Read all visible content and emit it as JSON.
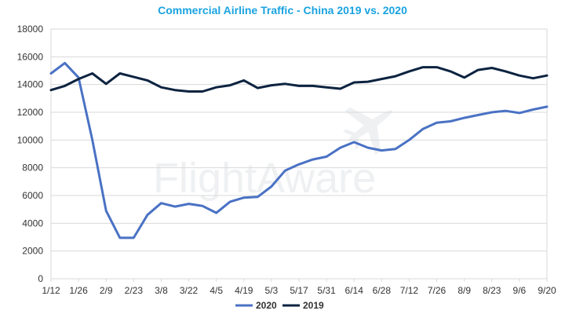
{
  "colors": {
    "title": "#1aa3e0",
    "series_2020": "#4a72c4",
    "series_2019": "#0c2340",
    "grid": "#d9d9d9"
  },
  "watermark": "FlightAware",
  "chart_data": {
    "type": "line",
    "title": "Commercial Airline Traffic - China 2019 vs. 2020",
    "xlabel": "",
    "ylabel": "",
    "ylim": [
      0,
      18000
    ],
    "yticks": [
      0,
      2000,
      4000,
      6000,
      8000,
      10000,
      12000,
      14000,
      16000,
      18000
    ],
    "ytick_labels": [
      "0",
      "2000",
      "4000",
      "6000",
      "8000",
      "10000",
      "12000",
      "14000",
      "16000",
      "18000"
    ],
    "x_points": 37,
    "xtick_labels": [
      "1/12",
      "1/26",
      "2/9",
      "2/23",
      "3/8",
      "3/22",
      "4/5",
      "4/19",
      "5/3",
      "5/17",
      "5/31",
      "6/14",
      "6/28",
      "7/12",
      "7/26",
      "8/9",
      "8/23",
      "9/6",
      "9/20"
    ],
    "legend": "bottom-center",
    "grid": true,
    "series": [
      {
        "name": "2020",
        "values": [
          14800,
          15550,
          14500,
          10000,
          4900,
          2950,
          2950,
          4600,
          5450,
          5200,
          5400,
          5250,
          4750,
          5550,
          5850,
          5900,
          6650,
          7800,
          8250,
          8600,
          8800,
          9450,
          9850,
          9450,
          9250,
          9350,
          10000,
          10800,
          11250,
          11350,
          11600,
          11800,
          12000,
          12100,
          11950,
          12200,
          12400
        ]
      },
      {
        "name": "2019",
        "values": [
          13600,
          13900,
          14400,
          14800,
          14050,
          14800,
          14550,
          14300,
          13800,
          13600,
          13500,
          13500,
          13800,
          13950,
          14300,
          13750,
          13950,
          14050,
          13900,
          13900,
          13800,
          13700,
          14150,
          14200,
          14400,
          14600,
          14950,
          15250,
          15250,
          14950,
          14500,
          15050,
          15200,
          14950,
          14650,
          14450,
          14650
        ]
      }
    ]
  }
}
